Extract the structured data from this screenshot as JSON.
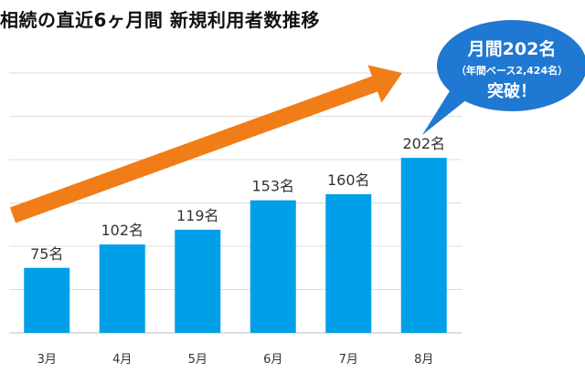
{
  "chart_data": {
    "type": "bar",
    "title": "相続の直近6ヶ月間 新規利用者数推移",
    "categories": [
      "3月",
      "4月",
      "5月",
      "6月",
      "7月",
      "8月"
    ],
    "values": [
      75,
      102,
      119,
      153,
      160,
      202
    ],
    "value_labels": [
      "75名",
      "102名",
      "119名",
      "153名",
      "160名",
      "202名"
    ],
    "ylim": [
      0,
      300
    ],
    "grid": true,
    "bar_color": "#00a0e9",
    "trend_arrow_color": "#f07d18",
    "callout": {
      "line1": "月間202名",
      "line2": "（年間ベース2,424名）",
      "line3": "突破！",
      "color": "#1f78d1"
    }
  }
}
